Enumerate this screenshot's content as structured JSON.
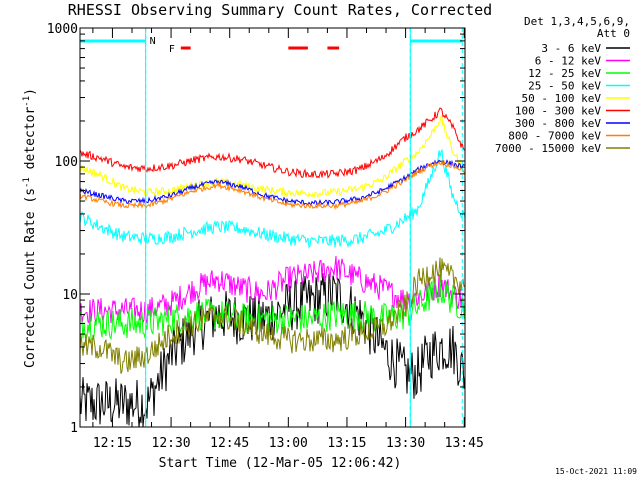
{
  "chart_data": {
    "type": "line",
    "title": "RHESSI Observing Summary Count Rates, Corrected",
    "xlabel": "Start Time (12-Mar-05 12:06:42)",
    "ylabel_prefix": "Corrected Count Rate (s",
    "ylabel_sup1": "-1",
    "ylabel_mid": " detector",
    "ylabel_sup2": "-1",
    "ylabel_suffix": ")",
    "y_scale": "log",
    "ylim": [
      1,
      1000
    ],
    "y_ticks": [
      {
        "value": 1,
        "label": "1"
      },
      {
        "value": 10,
        "label": "10"
      },
      {
        "value": 100,
        "label": "100"
      },
      {
        "value": 1000,
        "label": "1000"
      }
    ],
    "xlim_minutes": [
      6.7,
      105.2
    ],
    "x_ticks": [
      {
        "minute": 15,
        "label": "12:15"
      },
      {
        "minute": 30,
        "label": "12:30"
      },
      {
        "minute": 45,
        "label": "12:45"
      },
      {
        "minute": 60,
        "label": "13:00"
      },
      {
        "minute": 75,
        "label": "13:15"
      },
      {
        "minute": 90,
        "label": "13:30"
      },
      {
        "minute": 105,
        "label": "13:45"
      }
    ],
    "legend_header": [
      "Det 1,3,4,5,6,9,",
      "Att 0"
    ],
    "timestamp": "15-Oct-2021 11:09",
    "flag_labels": {
      "night": "N",
      "flare": "F"
    },
    "night_intervals_minutes": [
      [
        6.7,
        23.5
      ],
      [
        91.2,
        104.5
      ]
    ],
    "saa_lines_minutes": [
      23.5,
      91.2
    ],
    "flare_intervals_minutes": [
      [
        32.5,
        35.0
      ],
      [
        60.0,
        65.0
      ],
      [
        70.0,
        73.0
      ]
    ],
    "curve_times_minutes": [
      6.7,
      12,
      18,
      24,
      30,
      36,
      42,
      48,
      54,
      60,
      66,
      72,
      78,
      84,
      90,
      93,
      96,
      99,
      102,
      105
    ],
    "series": [
      {
        "name": "3 - 6 keV",
        "color": "#000000",
        "noise": 0.2,
        "values": [
          1.5,
          1.5,
          1.5,
          1.5,
          3.5,
          5.5,
          7,
          6.5,
          6.5,
          8,
          9,
          10,
          7,
          4,
          2.5,
          2.5,
          3.5,
          4,
          4,
          2.5
        ]
      },
      {
        "name": "6 - 12 keV",
        "color": "#ff00ff",
        "noise": 0.1,
        "values": [
          7.5,
          7.5,
          7.5,
          7.5,
          8.5,
          11,
          13,
          11,
          10,
          13,
          14,
          16,
          13,
          11,
          9,
          9.5,
          10.5,
          12,
          10,
          9
        ]
      },
      {
        "name": "12 - 25 keV",
        "color": "#00ff00",
        "noise": 0.12,
        "values": [
          6,
          6,
          6,
          6,
          6.5,
          7,
          7,
          6.5,
          6.5,
          6.5,
          6.5,
          7,
          7,
          6.5,
          7,
          8,
          9.5,
          11,
          9,
          8
        ]
      },
      {
        "name": "25 - 50 keV",
        "color": "#00ffff",
        "noise": 0.05,
        "values": [
          38,
          32,
          27,
          26,
          27,
          30,
          32,
          31,
          28,
          26,
          25,
          25,
          26,
          29,
          37,
          43,
          70,
          120,
          55,
          38
        ]
      },
      {
        "name": "50 - 100 keV",
        "color": "#ffff00",
        "noise": 0.03,
        "values": [
          90,
          78,
          62,
          58,
          60,
          66,
          70,
          66,
          61,
          58,
          57,
          58,
          62,
          72,
          100,
          115,
          150,
          210,
          120,
          85
        ]
      },
      {
        "name": "100 - 300 keV",
        "color": "#ff0000",
        "noise": 0.03,
        "values": [
          115,
          105,
          90,
          88,
          92,
          102,
          108,
          103,
          92,
          83,
          79,
          80,
          86,
          105,
          150,
          170,
          200,
          240,
          180,
          120
        ]
      },
      {
        "name": "300 - 800 keV",
        "color": "#0000ff",
        "noise": 0.02,
        "values": [
          60,
          55,
          50,
          50,
          55,
          64,
          70,
          64,
          55,
          50,
          48,
          49,
          52,
          60,
          75,
          85,
          95,
          100,
          95,
          90
        ]
      },
      {
        "name": "800 - 7000 keV",
        "color": "#ff8000",
        "noise": 0.02,
        "values": [
          55,
          50,
          46,
          46,
          52,
          60,
          66,
          60,
          52,
          47,
          46,
          46,
          49,
          57,
          72,
          82,
          92,
          98,
          92,
          85
        ]
      },
      {
        "name": "7000 - 15000 keV",
        "color": "#808000",
        "noise": 0.1,
        "values": [
          4,
          4,
          3,
          3.5,
          5,
          6,
          7,
          6,
          5,
          4.5,
          4.5,
          4.5,
          5,
          5.5,
          8,
          12,
          15,
          15,
          13,
          12
        ]
      }
    ]
  }
}
